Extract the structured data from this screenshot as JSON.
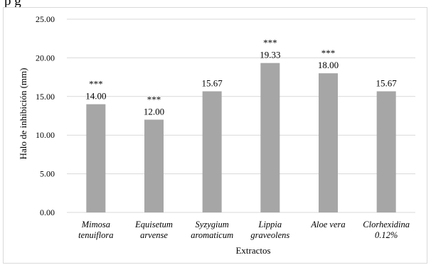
{
  "header": {
    "partial_text": "p g"
  },
  "chart_data": {
    "type": "bar",
    "categories": [
      [
        "Mimosa",
        "tenuiflora"
      ],
      [
        "Equisetum",
        "arvense"
      ],
      [
        "Syzygium",
        "aromaticum"
      ],
      [
        "Lippia",
        "graveolens"
      ],
      [
        "Aloe vera"
      ],
      [
        "Clorhexidina",
        "0.12%"
      ]
    ],
    "values": [
      14.0,
      12.0,
      15.67,
      19.33,
      18.0,
      15.67
    ],
    "value_labels": [
      "14.00",
      "12.00",
      "15.67",
      "19.33",
      "18.00",
      "15.67"
    ],
    "significance": [
      "***",
      "***",
      "",
      "***",
      "***",
      ""
    ],
    "xlabel": "Extractos",
    "ylabel": "Halo de inhibición (mm)",
    "ylim": [
      0,
      25
    ],
    "yticks": [
      "0.00",
      "5.00",
      "10.00",
      "15.00",
      "20.00",
      "25.00"
    ],
    "grid": true,
    "bar_color": "#a6a6a6",
    "grid_color": "#d9d9d9"
  }
}
